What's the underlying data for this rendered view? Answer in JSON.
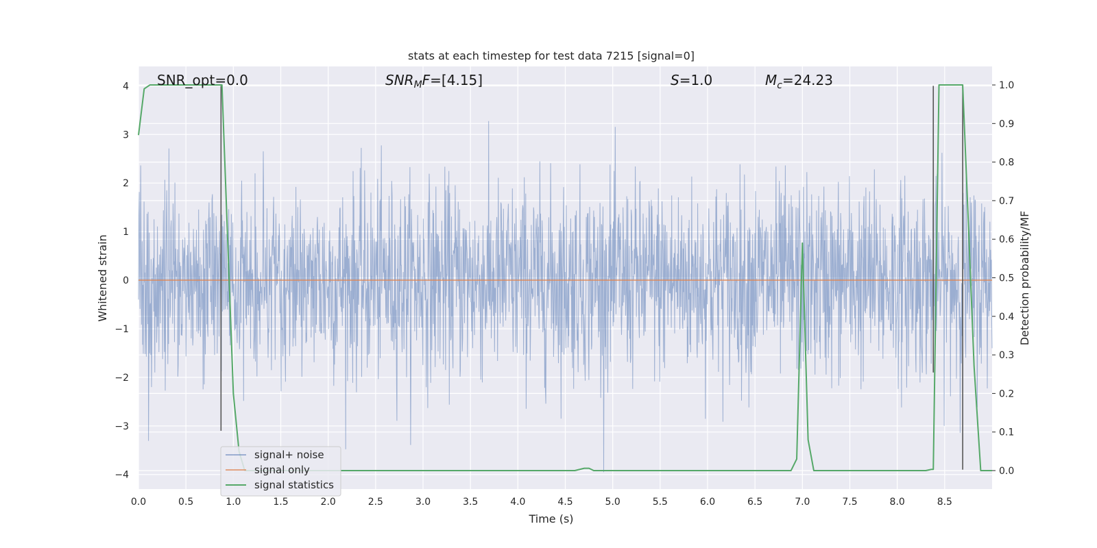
{
  "chart_data": {
    "type": "line",
    "title": "stats at each timestep for test data 7215 [signal=0]",
    "xlabel": "Time (s)",
    "ylabel_left": "Whitened strain",
    "ylabel_right": "Detection probability/MF",
    "xlim": [
      0.0,
      9.0
    ],
    "ylim_left": [
      -4.3,
      4.4
    ],
    "ylim_right": [
      -0.048,
      1.048
    ],
    "x_ticks": [
      "0.0",
      "0.5",
      "1.0",
      "1.5",
      "2.0",
      "2.5",
      "3.0",
      "3.5",
      "4.0",
      "4.5",
      "5.0",
      "5.5",
      "6.0",
      "6.5",
      "7.0",
      "7.5",
      "8.0",
      "8.5"
    ],
    "x_tick_values": [
      0.0,
      0.5,
      1.0,
      1.5,
      2.0,
      2.5,
      3.0,
      3.5,
      4.0,
      4.5,
      5.0,
      5.5,
      6.0,
      6.5,
      7.0,
      7.5,
      8.0,
      8.5
    ],
    "y_left_ticks": [
      "4",
      "3",
      "2",
      "1",
      "0",
      "−1",
      "−2",
      "−3",
      "−4"
    ],
    "y_left_tick_values": [
      4,
      3,
      2,
      1,
      0,
      -1,
      -2,
      -3,
      -4
    ],
    "y_right_ticks": [
      "1.0",
      "0.9",
      "0.8",
      "0.7",
      "0.6",
      "0.5",
      "0.4",
      "0.3",
      "0.2",
      "0.1",
      "0.0"
    ],
    "y_right_tick_values": [
      1.0,
      0.9,
      0.8,
      0.7,
      0.6,
      0.5,
      0.4,
      0.3,
      0.2,
      0.1,
      0.0
    ],
    "grid": true,
    "legend_position": "lower-left",
    "annotations": [
      {
        "text": "SNR_opt=0.0",
        "x": 0.2,
        "y": 4.1
      },
      {
        "text": "SNR_MF=[4.15]",
        "x": 2.6,
        "y": 4.1
      },
      {
        "text": "S=1.0",
        "x": 5.6,
        "y": 4.1
      },
      {
        "text": "M_c=24.23",
        "x": 6.6,
        "y": 4.1
      }
    ],
    "series": [
      {
        "name": "signal+ noise",
        "color": "#4c72b0",
        "axis": "left",
        "kind": "noise",
        "duration": 9.0,
        "sigma": 1.0
      },
      {
        "name": "signal only",
        "color": "#dd8452",
        "axis": "left",
        "x": [
          0.0,
          9.0
        ],
        "values": [
          0.0,
          0.0
        ]
      },
      {
        "name": "signal statistics",
        "color": "#55a868",
        "axis": "right",
        "x": [
          0.0,
          0.06,
          0.12,
          0.25,
          0.5,
          0.75,
          0.88,
          0.94,
          1.0,
          1.06,
          1.12,
          1.5,
          2.0,
          3.0,
          4.0,
          4.5,
          4.6,
          4.7,
          4.75,
          4.8,
          5.0,
          6.0,
          6.88,
          6.94,
          7.0,
          7.06,
          7.12,
          7.5,
          8.0,
          8.3,
          8.36,
          8.38,
          8.44,
          8.5,
          8.6,
          8.69,
          8.75,
          8.81,
          8.88,
          9.0
        ],
        "values": [
          0.87,
          0.99,
          1.0,
          1.0,
          1.0,
          1.0,
          1.0,
          0.6,
          0.2,
          0.05,
          0.0,
          0.0,
          0.0,
          0.0,
          0.0,
          0.0,
          0.0,
          0.006,
          0.006,
          0.0,
          0.0,
          0.0,
          0.0,
          0.03,
          0.59,
          0.08,
          0.0,
          0.0,
          0.0,
          0.0,
          0.003,
          0.003,
          1.0,
          1.0,
          1.0,
          1.0,
          0.64,
          0.27,
          0.0,
          0.0
        ]
      }
    ],
    "vlines": [
      {
        "x": 0.87,
        "y_from": -3.1,
        "y_to": 4.0,
        "color": "#555555"
      },
      {
        "x": 8.38,
        "y_from": -1.9,
        "y_to": 4.0,
        "color": "#555555"
      },
      {
        "x": 8.69,
        "y_from": -3.9,
        "y_to": 4.0,
        "color": "#555555"
      }
    ]
  }
}
